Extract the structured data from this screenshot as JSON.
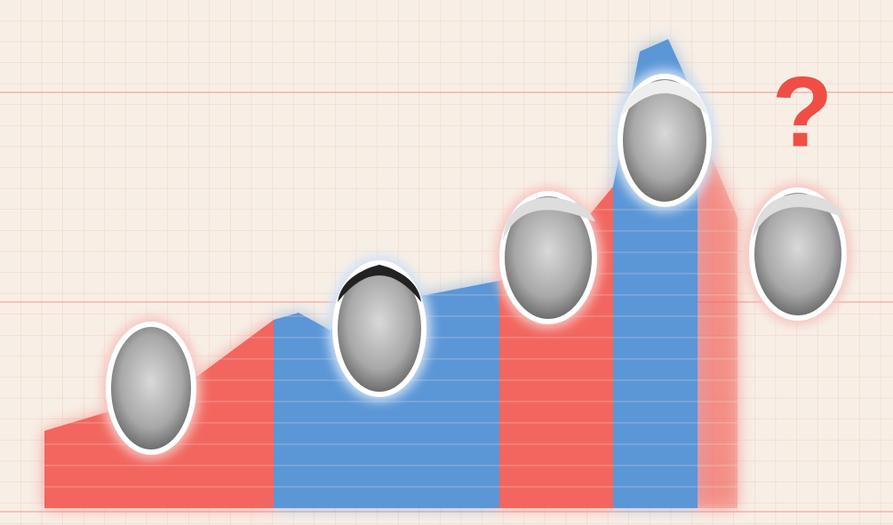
{
  "question_mark": "?"
}
